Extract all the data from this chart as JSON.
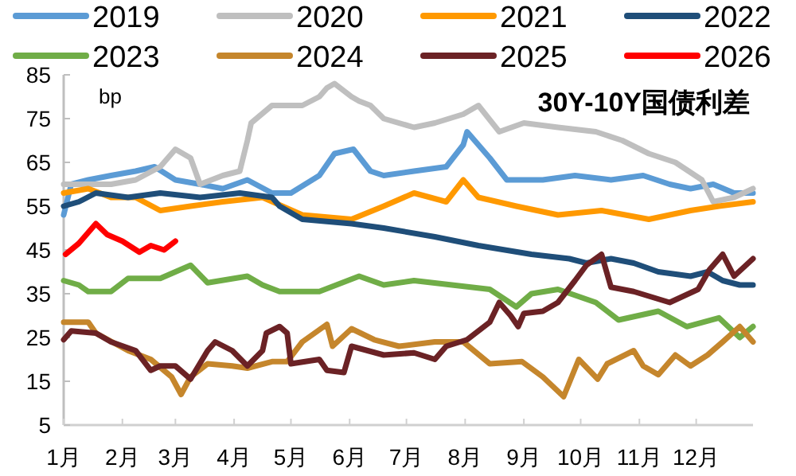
{
  "chart_data": {
    "type": "line",
    "title": "30Y-10Y国债利差",
    "ylabel": "bp",
    "legend": "top",
    "xlim": [
      "--01-01",
      "--12-31"
    ],
    "xticks": [
      {
        "value": "--01-01",
        "label": "1月"
      },
      {
        "value": "--02-01",
        "label": "2月"
      },
      {
        "value": "--03-01",
        "label": "3月"
      },
      {
        "value": "--04-01",
        "label": "4月"
      },
      {
        "value": "--05-01",
        "label": "5月"
      },
      {
        "value": "--06-01",
        "label": "6月"
      },
      {
        "value": "--07-01",
        "label": "7月"
      },
      {
        "value": "--08-01",
        "label": "8月"
      },
      {
        "value": "--09-01",
        "label": "9月"
      },
      {
        "value": "--10-01",
        "label": "10月"
      },
      {
        "value": "--11-01",
        "label": "11月"
      },
      {
        "value": "--12-01",
        "label": "12月"
      }
    ],
    "ylim": [
      5,
      85
    ],
    "yticks": [
      5,
      15,
      25,
      35,
      45,
      55,
      65,
      75,
      85
    ],
    "series": [
      {
        "name": "2019",
        "color": "#5b9bd5",
        "x": [
          "--01-01",
          "--01-05",
          "--01-14",
          "--01-26",
          "--02-08",
          "--02-18",
          "--03-01",
          "--03-14",
          "--03-26",
          "--04-08",
          "--04-21",
          "--05-01",
          "--05-16",
          "--05-24",
          "--06-03",
          "--06-12",
          "--06-19",
          "--07-05",
          "--07-22",
          "--07-31",
          "--08-02",
          "--08-14",
          "--08-23",
          "--09-11",
          "--09-28",
          "--10-17",
          "--11-03",
          "--11-17",
          "--11-28",
          "--12-10",
          "--12-21",
          "--12-31"
        ],
        "values": [
          53,
          60,
          61,
          62,
          63,
          64,
          61,
          60,
          59,
          61,
          58,
          58,
          62,
          67,
          68,
          63,
          62,
          63,
          64,
          69,
          72,
          66,
          61,
          61,
          62,
          61,
          62,
          60,
          59,
          60,
          58,
          58
        ]
      },
      {
        "name": "2020",
        "color": "#bfbfbf",
        "x": [
          "--01-01",
          "--01-14",
          "--01-26",
          "--02-08",
          "--02-21",
          "--03-01",
          "--03-09",
          "--03-14",
          "--03-26",
          "--04-04",
          "--04-08",
          "--04-10",
          "--04-21",
          "--05-07",
          "--05-16",
          "--05-20",
          "--05-24",
          "--06-02",
          "--06-06",
          "--06-12",
          "--06-19",
          "--07-05",
          "--07-16",
          "--07-31",
          "--08-08",
          "--08-19",
          "--09-01",
          "--09-19",
          "--10-09",
          "--10-23",
          "--11-06",
          "--11-20",
          "--12-04",
          "--12-10",
          "--12-21",
          "--12-31"
        ],
        "values": [
          60,
          60,
          60,
          61,
          64,
          68,
          66,
          60,
          62,
          63,
          70,
          74,
          78,
          78,
          80,
          82,
          83,
          80,
          79,
          78,
          75,
          73,
          74,
          76,
          78,
          72,
          74,
          73,
          72,
          70,
          67,
          65,
          61,
          56,
          57,
          59
        ]
      },
      {
        "name": "2021",
        "color": "#ff9900",
        "x": [
          "--01-01",
          "--01-14",
          "--01-26",
          "--02-08",
          "--02-21",
          "--03-09",
          "--03-26",
          "--04-16",
          "--05-07",
          "--06-02",
          "--06-19",
          "--07-05",
          "--07-22",
          "--07-31",
          "--08-08",
          "--08-28",
          "--09-19",
          "--10-12",
          "--11-06",
          "--11-28",
          "--12-13",
          "--12-31"
        ],
        "values": [
          58,
          59,
          57,
          57,
          54,
          55,
          56,
          57,
          53,
          52,
          55,
          58,
          56,
          61,
          57,
          55,
          53,
          54,
          52,
          54,
          55,
          56
        ]
      },
      {
        "name": "2022",
        "color": "#1f4e79",
        "x": [
          "--01-01",
          "--01-09",
          "--01-18",
          "--02-04",
          "--02-21",
          "--03-14",
          "--04-04",
          "--04-21",
          "--04-25",
          "--05-07",
          "--06-02",
          "--06-19",
          "--07-16",
          "--08-08",
          "--09-05",
          "--09-25",
          "--10-04",
          "--10-17",
          "--10-29",
          "--11-11",
          "--11-28",
          "--12-07",
          "--12-15",
          "--12-24",
          "--12-31"
        ],
        "values": [
          55,
          56,
          58,
          57,
          58,
          57,
          58,
          57,
          55,
          52,
          51,
          50,
          48,
          46,
          44,
          43,
          42,
          43,
          42,
          40,
          39,
          40,
          38,
          37,
          37
        ]
      },
      {
        "name": "2023",
        "color": "#70ad47",
        "x": [
          "--01-01",
          "--01-09",
          "--01-14",
          "--01-26",
          "--02-04",
          "--02-21",
          "--03-09",
          "--03-18",
          "--04-08",
          "--04-16",
          "--04-25",
          "--05-16",
          "--06-06",
          "--06-19",
          "--07-05",
          "--07-25",
          "--08-14",
          "--08-28",
          "--09-05",
          "--09-19",
          "--10-09",
          "--10-21",
          "--11-11",
          "--11-26",
          "--12-13",
          "--12-24",
          "--12-31"
        ],
        "values": [
          38,
          37,
          35.5,
          35.5,
          38.5,
          38.5,
          41.5,
          37.5,
          39,
          37,
          35.5,
          35.5,
          39,
          37,
          38,
          37,
          36,
          32,
          35,
          36,
          33,
          29,
          31,
          27.5,
          29.5,
          25,
          27.5
        ]
      },
      {
        "name": "2024",
        "color": "#c5862c",
        "x": [
          "--01-01",
          "--01-14",
          "--01-18",
          "--02-04",
          "--02-16",
          "--02-27",
          "--03-04",
          "--03-09",
          "--03-18",
          "--03-31",
          "--04-08",
          "--04-21",
          "--04-29",
          "--05-07",
          "--05-20",
          "--05-23",
          "--06-02",
          "--06-14",
          "--06-27",
          "--07-16",
          "--07-31",
          "--08-14",
          "--08-31",
          "--09-11",
          "--09-22",
          "--09-30",
          "--10-10",
          "--10-15",
          "--10-29",
          "--11-03",
          "--11-11",
          "--11-20",
          "--11-28",
          "--12-07",
          "--12-15",
          "--12-24",
          "--12-31"
        ],
        "values": [
          28.5,
          28.5,
          26,
          22,
          20,
          16,
          12,
          16,
          19,
          18.5,
          18,
          19.5,
          19.5,
          24,
          28,
          23,
          27,
          24.5,
          23,
          24,
          24,
          19,
          19.5,
          16,
          11.5,
          20,
          15.5,
          19,
          22,
          18.5,
          16.5,
          21,
          18.5,
          21,
          24,
          27.5,
          24
        ]
      },
      {
        "name": "2025",
        "color": "#6b2225",
        "x": [
          "--01-01",
          "--01-05",
          "--01-18",
          "--01-26",
          "--02-08",
          "--02-16",
          "--02-21",
          "--03-01",
          "--03-09",
          "--03-18",
          "--03-22",
          "--03-31",
          "--04-08",
          "--04-16",
          "--04-18",
          "--04-25",
          "--04-29",
          "--05-01",
          "--05-16",
          "--05-20",
          "--05-29",
          "--06-02",
          "--06-19",
          "--07-05",
          "--07-16",
          "--07-22",
          "--08-02",
          "--08-14",
          "--08-19",
          "--08-25",
          "--08-29",
          "--09-01",
          "--09-11",
          "--09-19",
          "--09-28",
          "--10-04",
          "--10-12",
          "--10-17",
          "--10-29",
          "--11-17",
          "--12-02",
          "--12-08",
          "--12-15",
          "--12-21",
          "--12-31"
        ],
        "values": [
          24.5,
          26.5,
          26,
          24,
          22,
          17.5,
          18.5,
          18.5,
          15.5,
          22,
          24,
          22,
          18.5,
          22,
          26,
          27.5,
          26,
          19,
          20,
          17.5,
          17,
          23,
          21,
          21.5,
          20,
          23,
          24.5,
          28.5,
          33,
          30,
          27.5,
          30.5,
          31,
          33,
          38,
          41.5,
          44,
          36.5,
          35.5,
          33,
          36,
          40.5,
          44,
          39,
          43
        ]
      },
      {
        "name": "2026",
        "color": "#ff0000",
        "x": [
          "--01-02",
          "--01-09",
          "--01-18",
          "--01-24",
          "--02-01",
          "--02-10",
          "--02-16",
          "--02-23",
          "--03-01"
        ],
        "values": [
          44,
          46.5,
          51,
          48.5,
          47,
          44.5,
          46,
          45,
          47
        ]
      }
    ]
  }
}
